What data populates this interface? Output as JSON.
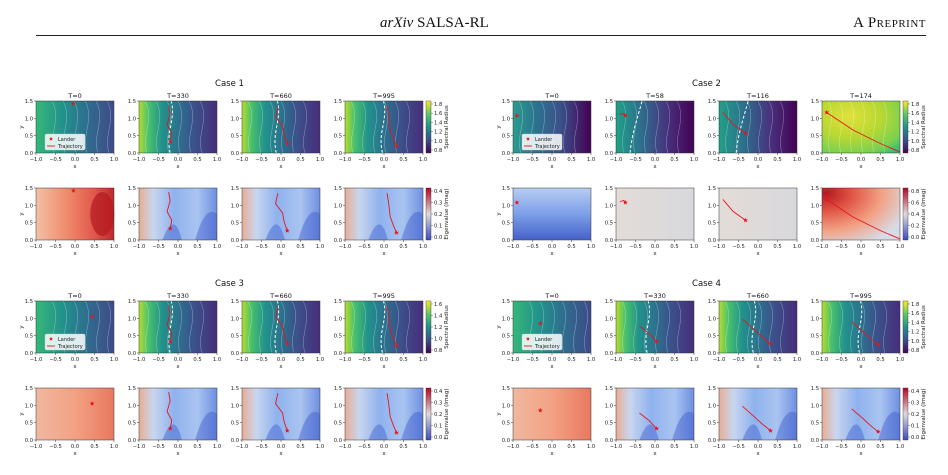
{
  "header": {
    "venue": "arXiv",
    "title": "SALSA-RL",
    "right": "A Preprint"
  },
  "figure": {
    "cases": [
      {
        "title": "Case 1",
        "times": [
          "T=0",
          "T=330",
          "T=660",
          "T=995"
        ],
        "kind": "stable"
      },
      {
        "title": "Case 2",
        "times": [
          "T=0",
          "T=58",
          "T=116",
          "T=174"
        ],
        "kind": "unstable"
      },
      {
        "title": "Case 3",
        "times": [
          "T=0",
          "T=330",
          "T=660",
          "T=995"
        ],
        "kind": "stable"
      },
      {
        "title": "Case 4",
        "times": [
          "T=0",
          "T=330",
          "T=660",
          "T=995"
        ],
        "kind": "stable"
      }
    ],
    "legend": {
      "lander": "Lander",
      "trajectory": "Trajectory"
    },
    "xlabel": "x",
    "ylabel": "y",
    "xticks": [
      "−1.0",
      "−0.5",
      "0.0",
      "0.5",
      "1.0"
    ],
    "yticks": [
      "0.0",
      "0.5",
      "1.0",
      "1.5"
    ],
    "colorbars": {
      "radius_label": "Spectral Radius",
      "imag_label": "Eigenvalue (Imag)",
      "case1_radius": [
        "1.8",
        "1.6",
        "1.4",
        "1.2",
        "1.0",
        "0.8"
      ],
      "case1_imag": [
        "0.4",
        "0.3",
        "0.2",
        "0.1",
        "0.0"
      ],
      "case2_radius": [
        "1.8",
        "1.6",
        "1.4",
        "1.2",
        "1.0",
        "0.8"
      ],
      "case2_imag": [
        "0.8",
        "0.6",
        "0.4",
        "0.2",
        "0.0"
      ],
      "case3_radius": [
        "1.6",
        "1.4",
        "1.2",
        "1.0",
        "0.8"
      ],
      "case3_imag": [
        "0.4",
        "0.3",
        "0.2",
        "0.1",
        "0.0"
      ],
      "case4_radius": [
        "1.8",
        "1.6",
        "1.4",
        "1.2",
        "1.0",
        "0.8"
      ],
      "case4_imag": [
        "0.4",
        "0.3",
        "0.2",
        "0.1",
        "0.0"
      ]
    },
    "colors": {
      "lander": "#e8141c",
      "trajectory": "#e8141c"
    }
  }
}
